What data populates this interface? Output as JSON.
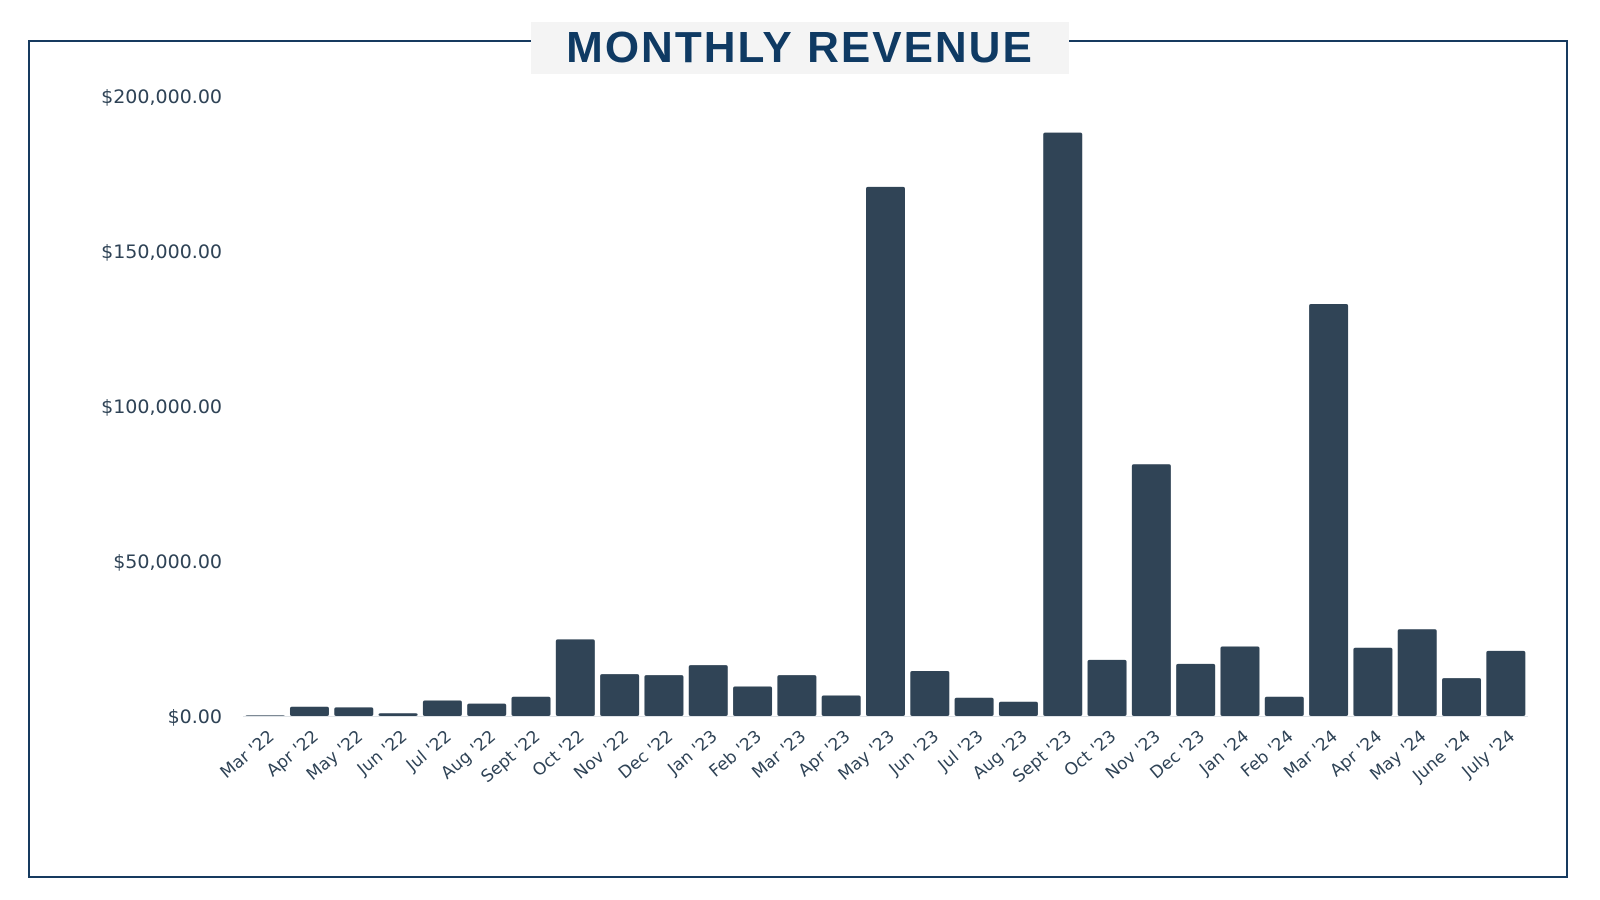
{
  "chart_data": {
    "type": "bar",
    "title": "MONTHLY REVENUE",
    "xlabel": "",
    "ylabel": "",
    "ylim": [
      0,
      200000
    ],
    "yticks": [
      "$0.00",
      "$50,000.00",
      "$100,000.00",
      "$150,000.00",
      "$200,000.00"
    ],
    "ytick_values": [
      0,
      50000,
      100000,
      150000,
      200000
    ],
    "grid": false,
    "bar_color": "#304456",
    "title_color": "#0f3a63",
    "categories": [
      "Mar '22",
      "Apr '22",
      "May '22",
      "Jun '22",
      "Jul '22",
      "Aug '22",
      "Sept '22",
      "Oct '22",
      "Nov '22",
      "Dec '22",
      "Jan '23",
      "Feb '23",
      "Mar '23",
      "Apr '23",
      "May '23",
      "Jun '23",
      "Jul '23",
      "Aug '23",
      "Sept '23",
      "Oct '23",
      "Nov '23",
      "Dec '23",
      "Jan '24",
      "Feb '24",
      "Mar '24",
      "Apr '24",
      "May '24",
      "June '24",
      "July '24"
    ],
    "values": [
      200,
      3000,
      2800,
      900,
      5000,
      4000,
      6200,
      24700,
      13500,
      13200,
      16400,
      9500,
      13200,
      6600,
      170700,
      14500,
      5900,
      4600,
      188200,
      18100,
      81200,
      16800,
      22400,
      6200,
      132900,
      22000,
      28000,
      12200,
      21000
    ]
  }
}
